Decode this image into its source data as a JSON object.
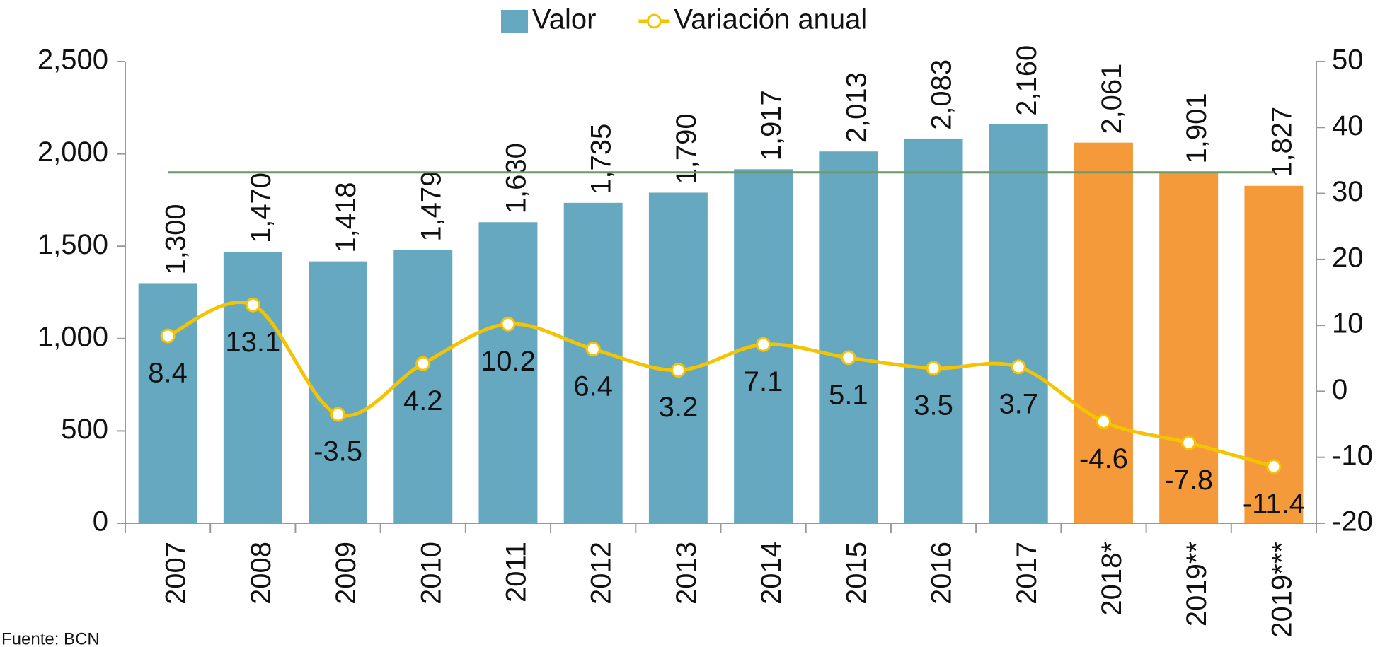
{
  "chart_data": {
    "type": "bar_line",
    "categories": [
      "2007",
      "2008",
      "2009",
      "2010",
      "2011",
      "2012",
      "2013",
      "2014",
      "2015",
      "2016",
      "2017",
      "2018*",
      "2019**",
      "2019***"
    ],
    "series": [
      {
        "name": "Valor",
        "type": "bar",
        "color": "#66a8bf",
        "bar_colors": [
          "#66a8bf",
          "#66a8bf",
          "#66a8bf",
          "#66a8bf",
          "#66a8bf",
          "#66a8bf",
          "#66a8bf",
          "#66a8bf",
          "#66a8bf",
          "#66a8bf",
          "#66a8bf",
          "#f59a3a",
          "#f59a3a",
          "#f59a3a"
        ],
        "values": [
          1300,
          1470,
          1418,
          1479,
          1630,
          1735,
          1790,
          1917,
          2013,
          2083,
          2160,
          2061,
          1901,
          1827
        ],
        "value_labels": [
          "1,300",
          "1,470",
          "1,418",
          "1,479",
          "1,630",
          "1,735",
          "1,790",
          "1,917",
          "2,013",
          "2,083",
          "2,160",
          "2,061",
          "1,901",
          "1,827"
        ]
      },
      {
        "name": "Variación anual",
        "type": "line",
        "axis": "y2",
        "color": "#f5c400",
        "values": [
          8.4,
          13.1,
          -3.5,
          4.2,
          10.2,
          6.4,
          3.2,
          7.1,
          5.1,
          3.5,
          3.7,
          -4.6,
          -7.8,
          -11.4
        ]
      }
    ],
    "reference_line": {
      "value": 1900,
      "color": "#6a9a6a"
    },
    "ylim": [
      0,
      2500
    ],
    "yticks": [
      0,
      {
        "value": 500,
        "label": "500"
      },
      {
        "value": 1000,
        "label": "1,000"
      },
      {
        "value": 1500,
        "label": "1,500"
      },
      {
        "value": 2000,
        "label": "2,000"
      },
      {
        "value": 2500,
        "label": "2,500"
      }
    ],
    "y2lim": [
      -20,
      50
    ],
    "y2ticks": [
      -20,
      -10,
      0,
      10,
      20,
      30,
      40,
      50
    ],
    "legend": "top",
    "source": "Fuente: BCN"
  }
}
